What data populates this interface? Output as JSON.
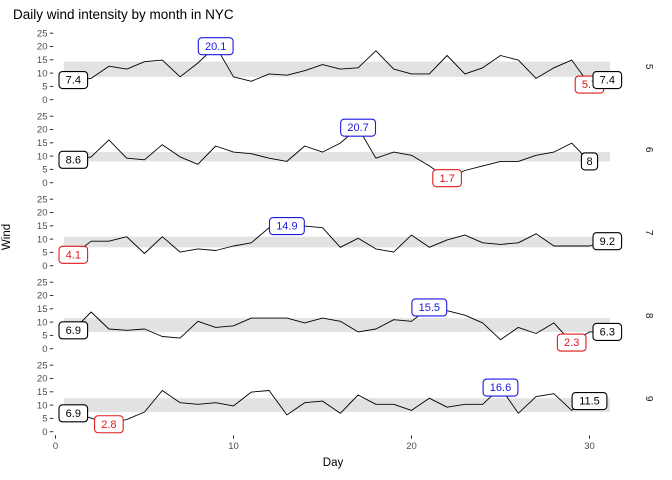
{
  "title": "Daily wind intensity by month in NYC",
  "colors": {
    "background": "#ffffff",
    "line": "#000000",
    "band": "#e2e2e2",
    "max_label": "#1a1ae0",
    "min_label": "#e01a1a",
    "first_last_label": "#000000",
    "tick_text": "#4d4d4d",
    "tick_mark": "#333333",
    "strip_text": "#1a1a1a",
    "axis_title": "#000000"
  },
  "chart_data": {
    "type": "line",
    "title": "Daily wind intensity by month in NYC",
    "xlabel": "Day",
    "ylabel": "Wind",
    "x_tick_values": [
      0,
      10,
      20,
      30
    ],
    "y_tick_values": [
      25,
      20,
      15,
      10,
      5,
      0
    ],
    "xlim": [
      0,
      31
    ],
    "ylim": [
      0,
      25
    ],
    "facet_variable": "Month",
    "legend": "none",
    "grid": "off",
    "facets": [
      {
        "label": "5",
        "band_low": 8.6,
        "band_high": 14.3,
        "wind": [
          7.4,
          8.0,
          12.6,
          11.5,
          14.3,
          14.9,
          8.6,
          13.8,
          20.1,
          8.6,
          6.9,
          9.7,
          9.2,
          10.9,
          13.2,
          11.5,
          12.0,
          18.4,
          11.5,
          9.7,
          9.7,
          16.6,
          9.7,
          12.0,
          16.6,
          14.9,
          8.0,
          12.0,
          14.9,
          5.7,
          7.4
        ],
        "annotations": [
          {
            "text": "7.4",
            "day": 1,
            "value": 7.4,
            "role": "first",
            "color_role": "first_last_label"
          },
          {
            "text": "20.1",
            "day": 9,
            "value": 20.1,
            "role": "max",
            "color_role": "max_label"
          },
          {
            "text": "5.7",
            "day": 30,
            "value": 5.7,
            "role": "min",
            "color_role": "min_label"
          },
          {
            "text": "7.4",
            "day": 31,
            "value": 7.4,
            "role": "last",
            "color_role": "first_last_label"
          }
        ]
      },
      {
        "label": "6",
        "band_low": 8.0,
        "band_high": 11.5,
        "wind": [
          8.6,
          9.7,
          16.1,
          9.2,
          8.6,
          14.3,
          9.7,
          6.9,
          13.8,
          11.5,
          10.9,
          9.2,
          8.0,
          13.8,
          11.5,
          14.9,
          20.7,
          9.2,
          11.5,
          10.3,
          6.3,
          1.7,
          4.6,
          6.3,
          8.0,
          8.0,
          10.3,
          11.5,
          14.9,
          8.0
        ],
        "annotations": [
          {
            "text": "8.6",
            "day": 1,
            "value": 8.6,
            "role": "first",
            "color_role": "first_last_label"
          },
          {
            "text": "20.7",
            "day": 17,
            "value": 20.7,
            "role": "max",
            "color_role": "max_label"
          },
          {
            "text": "1.7",
            "day": 22,
            "value": 1.7,
            "role": "min",
            "color_role": "min_label"
          },
          {
            "text": "8",
            "day": 30,
            "value": 8.0,
            "role": "last",
            "color_role": "first_last_label"
          }
        ]
      },
      {
        "label": "7",
        "band_low": 6.9,
        "band_high": 10.9,
        "wind": [
          4.1,
          9.2,
          9.2,
          10.9,
          4.6,
          10.9,
          5.1,
          6.3,
          5.7,
          7.4,
          8.6,
          14.3,
          14.9,
          14.9,
          14.3,
          6.9,
          10.3,
          6.3,
          5.1,
          11.5,
          6.9,
          9.7,
          11.5,
          8.6,
          8.0,
          8.6,
          12.0,
          7.4,
          7.4,
          7.4,
          9.2
        ],
        "annotations": [
          {
            "text": "4.1",
            "day": 1,
            "value": 4.1,
            "role": "min",
            "color_role": "min_label"
          },
          {
            "text": "14.9",
            "day": 13,
            "value": 14.9,
            "role": "max",
            "color_role": "max_label"
          },
          {
            "text": "9.2",
            "day": 31,
            "value": 9.2,
            "role": "last",
            "color_role": "first_last_label"
          }
        ]
      },
      {
        "label": "8",
        "band_low": 6.3,
        "band_high": 11.5,
        "wind": [
          6.9,
          13.8,
          7.4,
          6.9,
          7.4,
          4.6,
          4.0,
          10.3,
          8.0,
          8.6,
          11.5,
          11.5,
          11.5,
          9.7,
          11.5,
          10.3,
          6.3,
          7.4,
          10.9,
          10.3,
          15.5,
          14.3,
          12.6,
          9.7,
          3.4,
          8.0,
          5.7,
          9.7,
          2.3,
          6.3,
          6.3
        ],
        "annotations": [
          {
            "text": "6.9",
            "day": 1,
            "value": 6.9,
            "role": "first",
            "color_role": "first_last_label"
          },
          {
            "text": "15.5",
            "day": 21,
            "value": 15.5,
            "role": "max",
            "color_role": "max_label"
          },
          {
            "text": "2.3",
            "day": 29,
            "value": 2.3,
            "role": "min",
            "color_role": "min_label"
          },
          {
            "text": "6.3",
            "day": 31,
            "value": 6.3,
            "role": "last",
            "color_role": "first_last_label"
          }
        ]
      },
      {
        "label": "9",
        "band_low": 7.4,
        "band_high": 12.6,
        "wind": [
          6.9,
          5.1,
          2.8,
          4.6,
          7.4,
          15.5,
          10.9,
          10.3,
          10.9,
          9.7,
          14.9,
          15.5,
          6.3,
          10.9,
          11.5,
          6.9,
          13.8,
          10.3,
          10.3,
          8.0,
          12.6,
          9.2,
          10.3,
          10.3,
          16.6,
          6.9,
          13.2,
          14.3,
          8.0,
          11.5
        ],
        "annotations": [
          {
            "text": "6.9",
            "day": 1,
            "value": 6.9,
            "role": "first",
            "color_role": "first_last_label"
          },
          {
            "text": "2.8",
            "day": 3,
            "value": 2.8,
            "role": "min",
            "color_role": "min_label"
          },
          {
            "text": "16.6",
            "day": 25,
            "value": 16.6,
            "role": "max",
            "color_role": "max_label"
          },
          {
            "text": "11.5",
            "day": 30,
            "value": 11.5,
            "role": "last",
            "color_role": "first_last_label"
          }
        ]
      }
    ]
  }
}
